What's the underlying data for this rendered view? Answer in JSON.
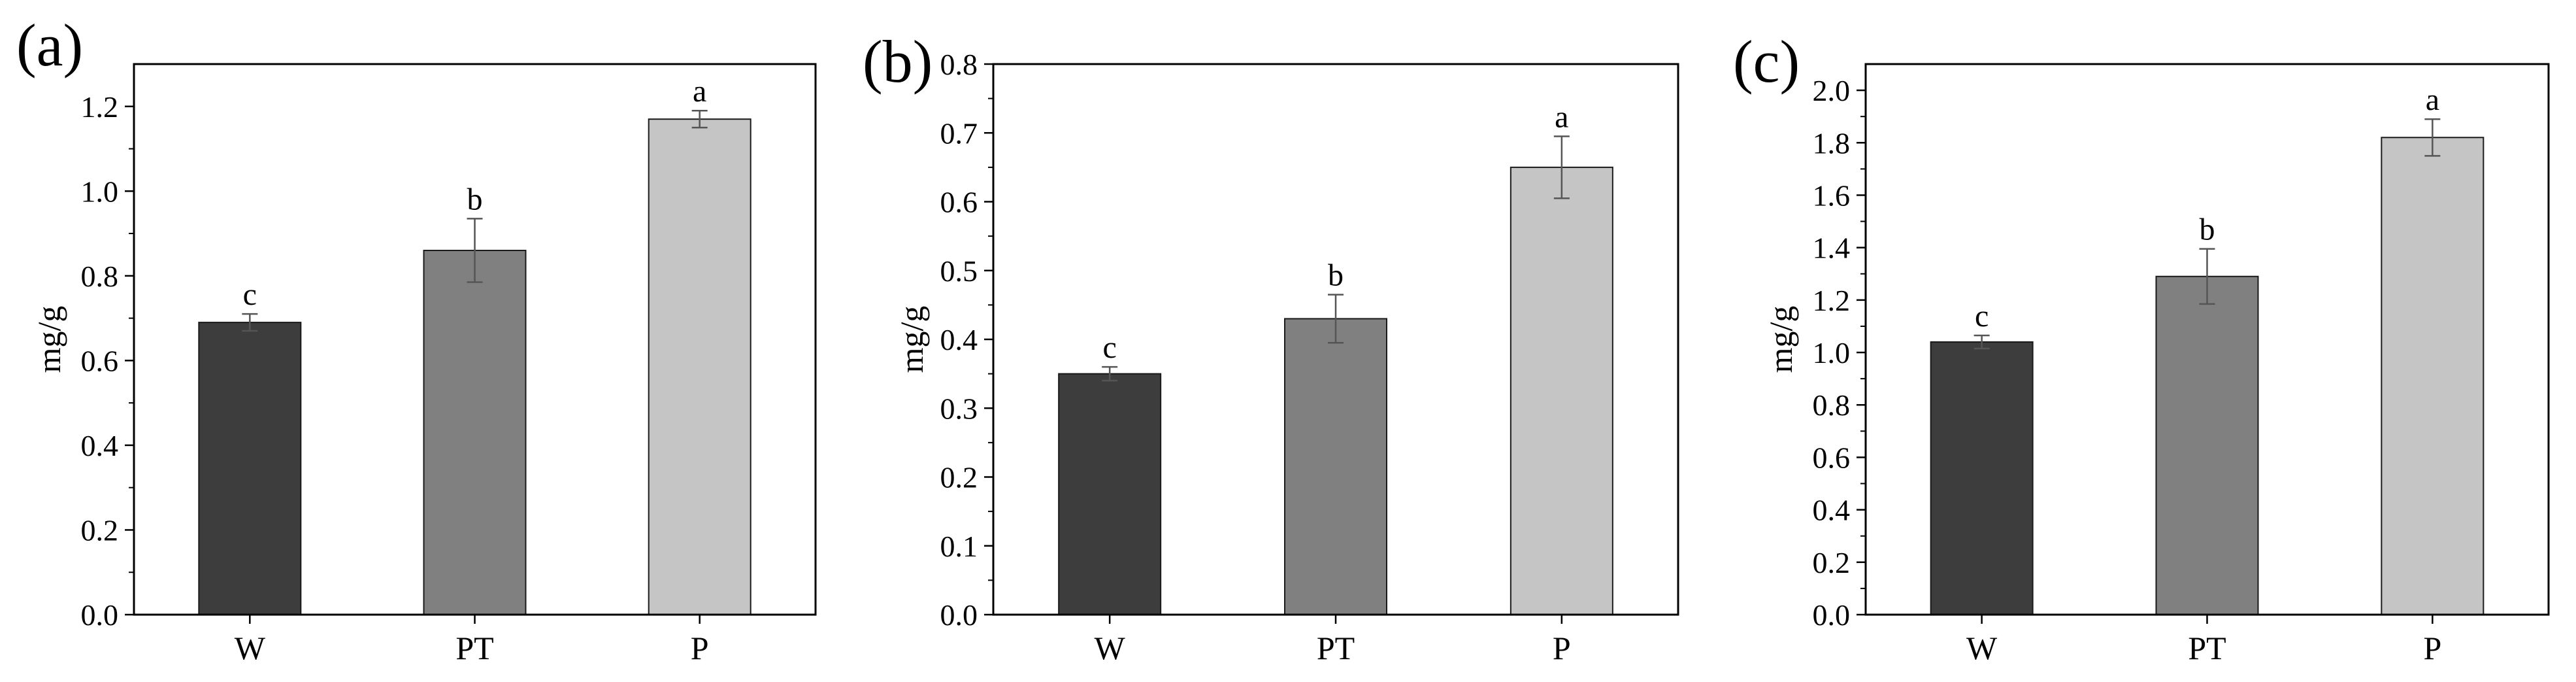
{
  "chart_data": [
    {
      "type": "bar",
      "panel_label": "(a)",
      "categories": [
        "W",
        "PT",
        "P"
      ],
      "values": [
        0.69,
        0.86,
        1.17
      ],
      "errors": [
        0.02,
        0.075,
        0.02
      ],
      "significance": [
        "c",
        "b",
        "a"
      ],
      "colors": [
        "#3d3d3d",
        "#808080",
        "#c5c5c5"
      ],
      "ylabel": "mg/g",
      "ylim": [
        0,
        1.3
      ],
      "yticks": [
        0.0,
        0.2,
        0.4,
        0.6,
        0.8,
        1.0,
        1.2
      ],
      "ytick_labels": [
        "0.0",
        "0.2",
        "0.4",
        "0.6",
        "0.8",
        "1.0",
        "1.2"
      ],
      "grid": false
    },
    {
      "type": "bar",
      "panel_label": "(b)",
      "categories": [
        "W",
        "PT",
        "P"
      ],
      "values": [
        0.35,
        0.43,
        0.65
      ],
      "errors": [
        0.01,
        0.035,
        0.045
      ],
      "significance": [
        "c",
        "b",
        "a"
      ],
      "colors": [
        "#3d3d3d",
        "#808080",
        "#c5c5c5"
      ],
      "ylabel": "mg/g",
      "ylim": [
        0,
        0.8
      ],
      "yticks": [
        0.0,
        0.1,
        0.2,
        0.3,
        0.4,
        0.5,
        0.6,
        0.7,
        0.8
      ],
      "ytick_labels": [
        "0.0",
        "0.1",
        "0.2",
        "0.3",
        "0.4",
        "0.5",
        "0.6",
        "0.7",
        "0.8"
      ],
      "grid": false
    },
    {
      "type": "bar",
      "panel_label": "(c)",
      "categories": [
        "W",
        "PT",
        "P"
      ],
      "values": [
        1.04,
        1.29,
        1.82
      ],
      "errors": [
        0.025,
        0.105,
        0.07
      ],
      "significance": [
        "c",
        "b",
        "a"
      ],
      "colors": [
        "#3d3d3d",
        "#808080",
        "#c5c5c5"
      ],
      "ylabel": "mg/g",
      "ylim": [
        0,
        2.1
      ],
      "yticks": [
        0.0,
        0.2,
        0.4,
        0.6,
        0.8,
        1.0,
        1.2,
        1.4,
        1.6,
        1.8,
        2.0
      ],
      "ytick_labels": [
        "0.0",
        "0.2",
        "0.4",
        "0.6",
        "0.8",
        "1.0",
        "1.2",
        "1.4",
        "1.6",
        "1.8",
        "2.0"
      ],
      "grid": false
    }
  ]
}
